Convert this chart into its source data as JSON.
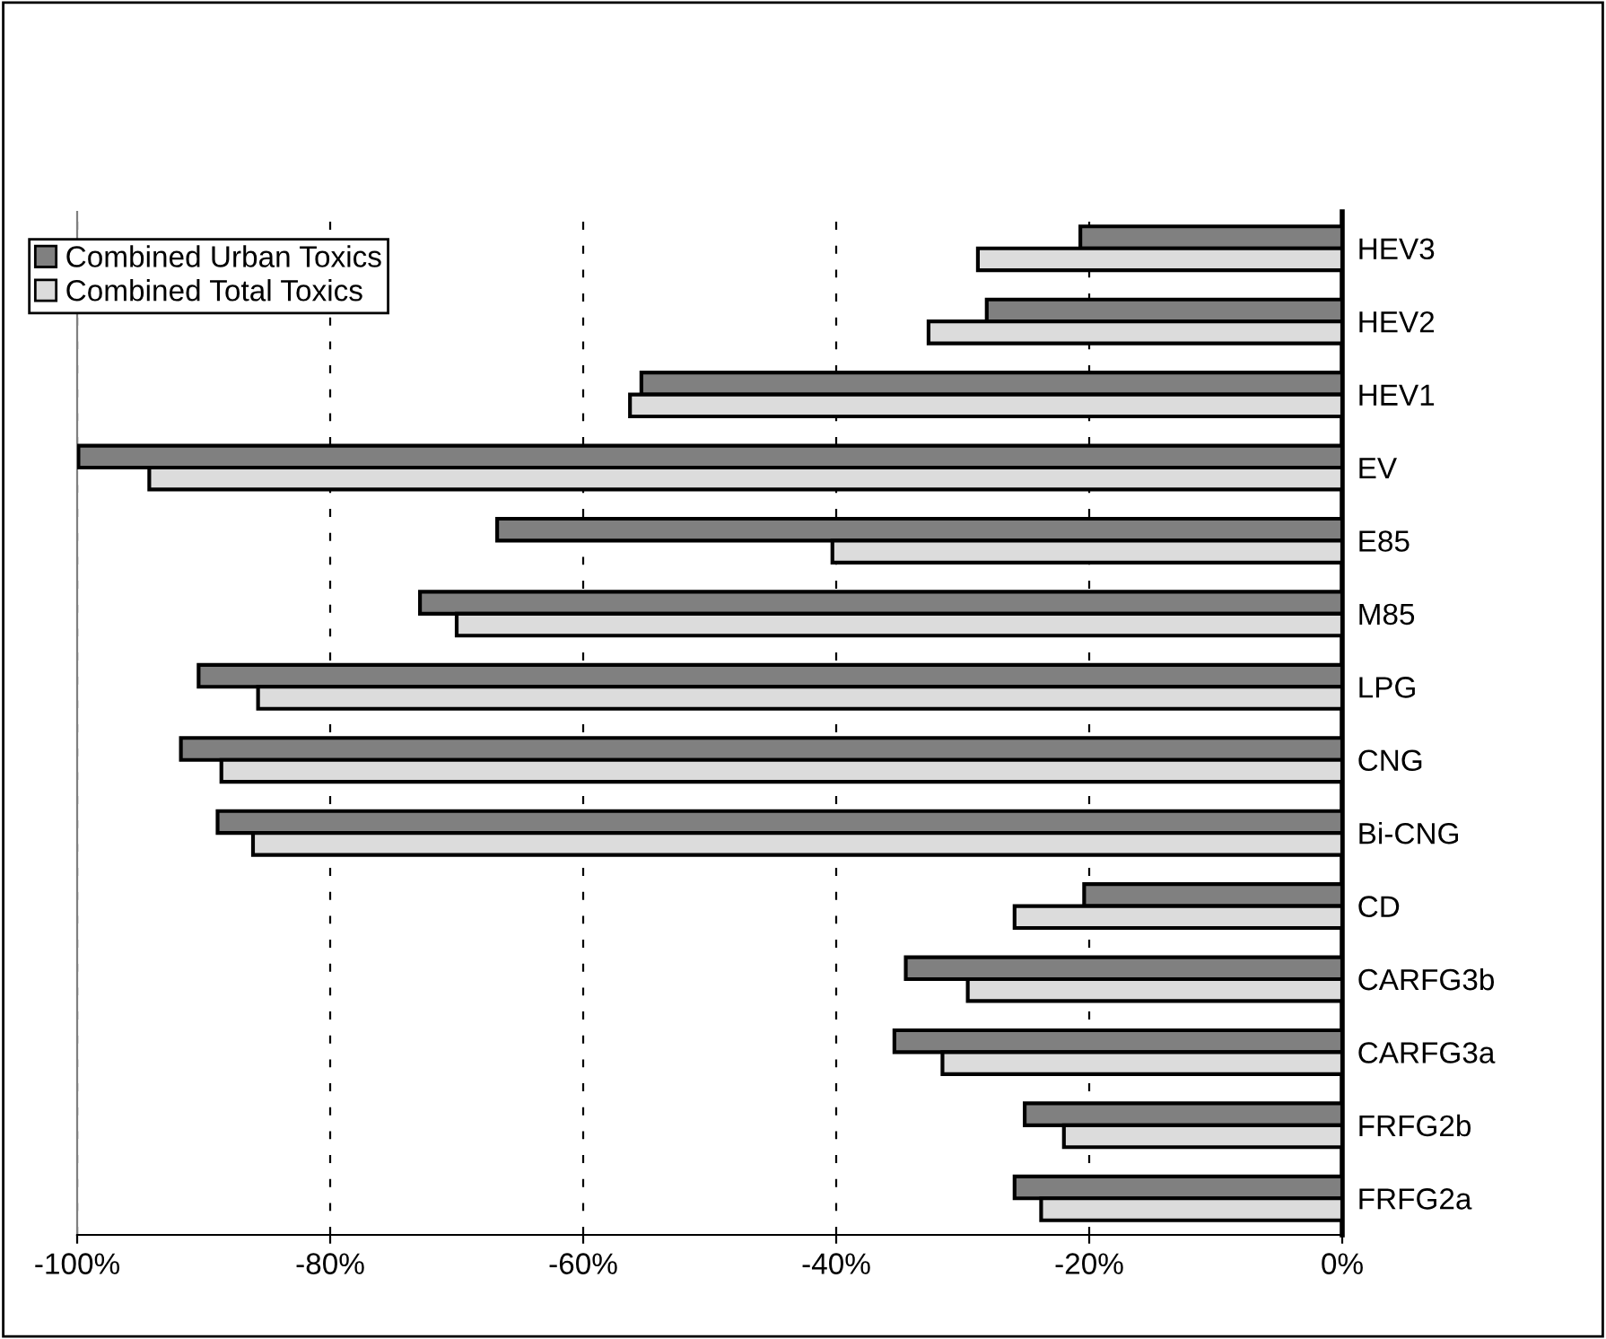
{
  "chart_data": {
    "type": "bar",
    "orientation": "horizontal",
    "categories": [
      "HEV3",
      "HEV2",
      "HEV1",
      "EV",
      "E85",
      "M85",
      "LPG",
      "CNG",
      "Bi-CNG",
      "CD",
      "CARFG3b",
      "CARFG3a",
      "FRFG2b",
      "FRFG2a"
    ],
    "series": [
      {
        "name": "Combined Urban Toxics",
        "color": "#808080",
        "values": [
          -20.7,
          -28.1,
          -55.4,
          -99.9,
          -66.8,
          -72.9,
          -90.4,
          -91.8,
          -88.9,
          -20.4,
          -34.5,
          -35.4,
          -25.1,
          -25.9
        ]
      },
      {
        "name": "Combined Total Toxics",
        "color": "#dcdcdc",
        "values": [
          -28.8,
          -32.7,
          -56.3,
          -94.3,
          -40.3,
          -70.0,
          -85.7,
          -88.6,
          -86.1,
          -25.9,
          -29.6,
          -31.6,
          -22.0,
          -23.8
        ]
      }
    ],
    "xlim": [
      -100,
      0
    ],
    "xticks": [
      {
        "value": -100,
        "label": "-100%"
      },
      {
        "value": -80,
        "label": "-80%"
      },
      {
        "value": -60,
        "label": "-60%"
      },
      {
        "value": -40,
        "label": "-40%"
      },
      {
        "value": -20,
        "label": "-20%"
      },
      {
        "value": 0,
        "label": "0%"
      }
    ],
    "grid": "x",
    "legend": "top left"
  }
}
